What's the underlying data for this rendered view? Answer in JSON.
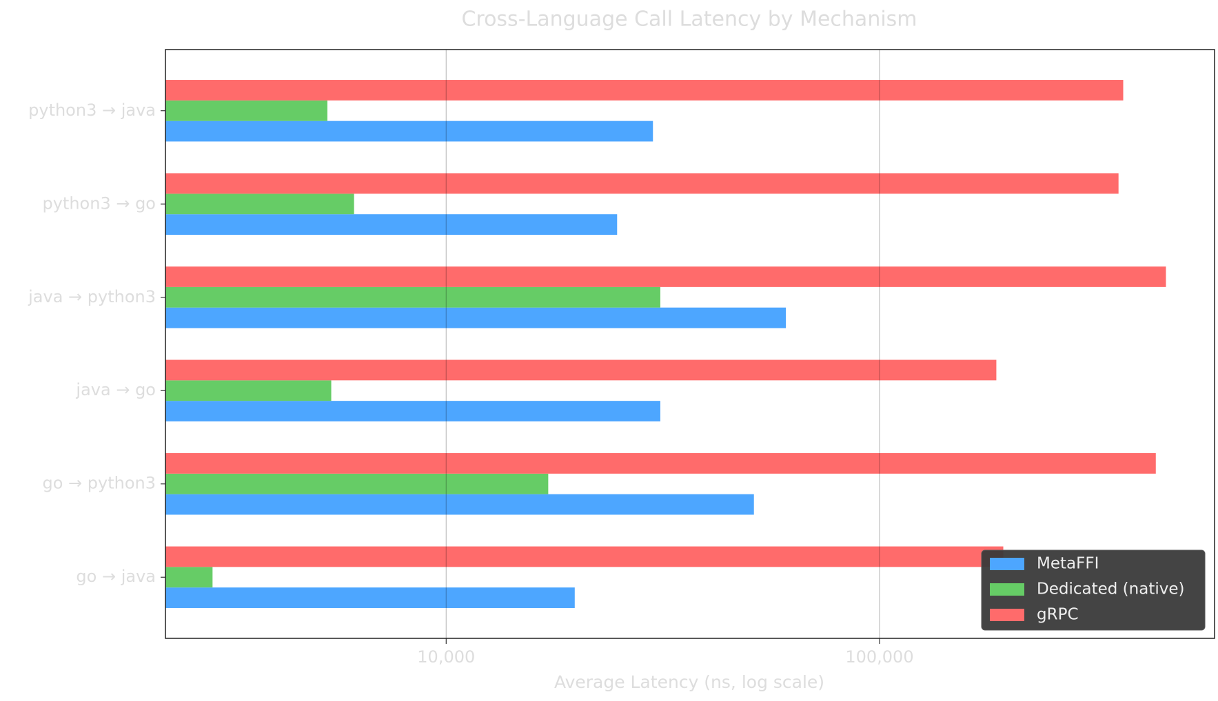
{
  "chart_data": {
    "type": "barh",
    "title": "Cross-Language Call Latency by Mechanism",
    "x_label": "Average Latency (ns, log scale)",
    "categories": [
      "python3 → java",
      "python3 → go",
      "java → python3",
      "java → go",
      "go → python3",
      "go → java"
    ],
    "series": [
      {
        "name": "MetaFFI",
        "color": "#4da6ff",
        "values": [
          30000,
          24800,
          60800,
          31200,
          51300,
          19800
        ]
      },
      {
        "name": "Dedicated (native)",
        "color": "#66cc66",
        "values": [
          5320,
          6130,
          31200,
          5430,
          17200,
          2890
        ]
      },
      {
        "name": "gRPC",
        "color": "#ff6b6b",
        "values": [
          365000,
          356000,
          458000,
          186000,
          434000,
          193000
        ]
      }
    ],
    "xlim": [
      2250,
      593000
    ],
    "xticks": [
      {
        "value": 10000,
        "label": "10,000"
      },
      {
        "value": 100000,
        "label": "100,000"
      }
    ],
    "log_x": true,
    "grid": true,
    "legend": "lower right"
  }
}
